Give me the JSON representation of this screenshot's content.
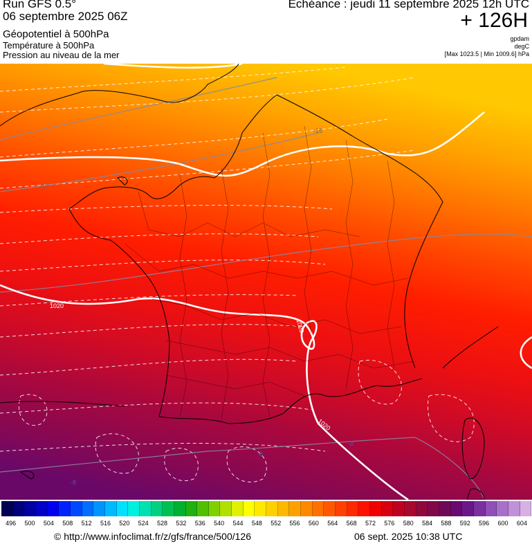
{
  "header": {
    "run_title": "Run GFS 0.5°",
    "run_date": "06 septembre 2025 06Z",
    "variables": [
      "Géopotentiel à 500hPa",
      "Température à 500hPa",
      "Pression au niveau de la mer"
    ],
    "echeance": "Echéance : jeudi 11 septembre 2025 12h UTC",
    "hour": "+ 126H",
    "units": [
      "gpdam",
      "degC"
    ],
    "max_min": "[Max 1023.5 | Min 1009.6] hPa"
  },
  "map": {
    "contour_labels": {
      "isobar_1020_west": "1020",
      "isobar_1020_center": "1020",
      "isobar_1020_south": "1020",
      "temp_minus16_north": "-16",
      "temp_minus16_west": "-16",
      "temp_minus8_south": "-8",
      "temp_minus8_southwest": "-8",
      "temp_minus8_southeast": "-8"
    },
    "gradient_colors": [
      "#ffc800",
      "#ffa000",
      "#ff7800",
      "#ff4a00",
      "#ff1e00",
      "#ee1010",
      "#cc0a28",
      "#a8083e",
      "#8a0850",
      "#6a0868"
    ],
    "line_colors": {
      "isobar": "#ffffff",
      "temperature": "#8888a0",
      "coast": "#000000"
    }
  },
  "scale": {
    "colors": [
      "#000055",
      "#00007a",
      "#0000a0",
      "#0000c8",
      "#0000ee",
      "#0022ff",
      "#0048ff",
      "#006eff",
      "#0094ff",
      "#00baff",
      "#00e0ff",
      "#00f0e0",
      "#00e0b0",
      "#00d080",
      "#00c050",
      "#00b030",
      "#20b010",
      "#50c000",
      "#80d000",
      "#b0e000",
      "#e0f000",
      "#ffff00",
      "#ffe800",
      "#ffd000",
      "#ffb800",
      "#ffa000",
      "#ff8800",
      "#ff7000",
      "#ff5800",
      "#ff4000",
      "#ff2800",
      "#ff1000",
      "#ee0000",
      "#d80010",
      "#c00020",
      "#a8082e",
      "#90083c",
      "#80084a",
      "#700858",
      "#680a70",
      "#6a1888",
      "#7a30a0",
      "#9050b8",
      "#a870c8",
      "#c090d8",
      "#d8b0e4"
    ],
    "labels": [
      "496",
      "500",
      "504",
      "508",
      "512",
      "516",
      "520",
      "524",
      "528",
      "532",
      "536",
      "540",
      "544",
      "548",
      "552",
      "556",
      "560",
      "564",
      "568",
      "572",
      "576",
      "580",
      "584",
      "588",
      "592",
      "596",
      "600",
      "604"
    ]
  },
  "footer": {
    "url": "© http://www.infoclimat.fr/z/gfs/france/500/126",
    "date": "06 sept. 2025 10:38 UTC"
  }
}
